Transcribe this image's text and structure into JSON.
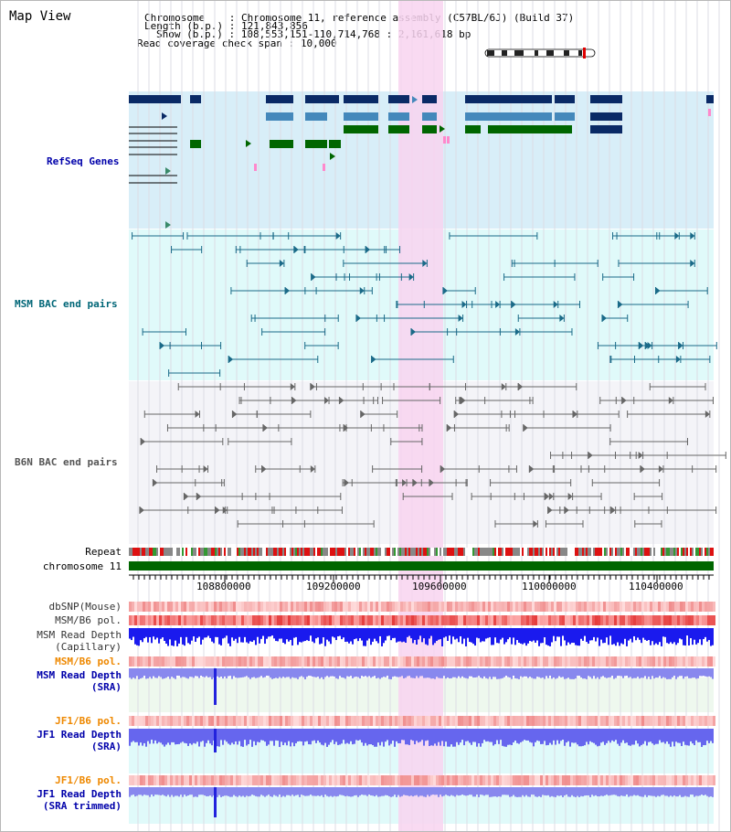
{
  "title": "Map View",
  "info": {
    "chromosome_label": "Chromosome    ",
    "chromosome_value": "Chromosome 11, reference assembly (C57BL/6J) (Build 37)",
    "length_label": "Length (b.p.)",
    "length_value": "121,843,856",
    "show_label": "Show (b.p.)",
    "show_value": "108,553,151-110,714,768 : 2,161,618 bp",
    "span_label": "Read coverage check span",
    "span_value": "10,000"
  },
  "tracks": {
    "refseq": "RefSeq Genes",
    "msm_bac": "MSM BAC end pairs",
    "b6n_bac": "B6N BAC end pairs"
  },
  "side_labels": {
    "repeat": "Repeat",
    "chromosome": "chromosome 11",
    "dbsnp": "dbSNP(Mouse)",
    "msm_b6_pol": "MSM/B6 pol.",
    "msm_read_depth_cap_1": "MSM Read Depth",
    "msm_read_depth_cap_2": "(Capillary)",
    "msm_b6_pol_2": "MSM/B6 pol.",
    "msm_read_depth_sra_1": "MSM Read Depth",
    "msm_read_depth_sra_2": "(SRA)",
    "jf1_b6_pol": "JF1/B6 pol.",
    "jf1_read_depth_1": "JF1 Read Depth",
    "jf1_read_depth_2": "(SRA)",
    "jf1_b6_pol_2": "JF1/B6 pol.",
    "jf1_read_depth_trim_1": "JF1 Read Depth",
    "jf1_read_depth_trim_2": "(SRA trimmed)"
  },
  "axis_ticks": [
    "108800000",
    "109200000",
    "109600000",
    "110000000",
    "110400000"
  ],
  "colors": {
    "refseq_bg": "#d8eef8",
    "msm_bg": "#e0fafa",
    "b6n_bg": "#f4f4f8",
    "highlight": "#f8d4f0",
    "gene_dark": "#0a2a66",
    "gene_mid": "#4488bb",
    "gene_green": "#006600",
    "msm_line": "#1a6a88",
    "b6n_line": "#666666",
    "label_blue": "#0000aa",
    "label_teal": "#006677",
    "label_orange": "#ee8800"
  }
}
